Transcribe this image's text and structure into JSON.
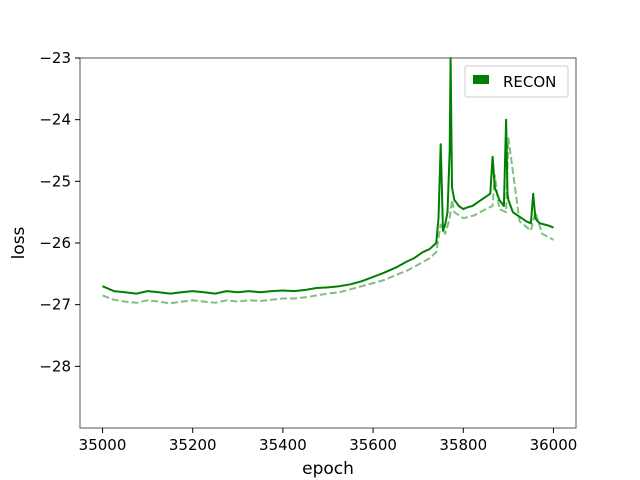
{
  "chart_data": {
    "type": "line",
    "title": "",
    "xlabel": "epoch",
    "ylabel": "loss",
    "xlim": [
      34950,
      36050
    ],
    "ylim": [
      -29,
      -23
    ],
    "xticks": [
      35000,
      35200,
      35400,
      35600,
      35800,
      36000
    ],
    "yticks": [
      -28,
      -27,
      -26,
      -25,
      -24,
      -23
    ],
    "xtick_labels": [
      "35000",
      "35200",
      "35400",
      "35600",
      "35800",
      "36000"
    ],
    "ytick_labels": [
      "−28",
      "−27",
      "−26",
      "−25",
      "−24",
      "−23"
    ],
    "grid": false,
    "legend": {
      "position": "top-right",
      "entries": [
        "RECON"
      ]
    },
    "colors": {
      "main": "#008000",
      "secondary": "#7fbf7f"
    },
    "series": [
      {
        "name": "RECON",
        "style": "solid",
        "x": [
          35000,
          35025,
          35050,
          35075,
          35100,
          35125,
          35150,
          35175,
          35200,
          35225,
          35250,
          35275,
          35300,
          35325,
          35350,
          35375,
          35400,
          35425,
          35450,
          35475,
          35500,
          35525,
          35550,
          35575,
          35600,
          35625,
          35650,
          35675,
          35690,
          35700,
          35710,
          35725,
          35740,
          35745,
          35750,
          35755,
          35760,
          35765,
          35770,
          35772,
          35775,
          35780,
          35790,
          35800,
          35810,
          35820,
          35830,
          35840,
          35850,
          35860,
          35865,
          35870,
          35875,
          35880,
          35890,
          35895,
          35898,
          35900,
          35905,
          35910,
          35920,
          35930,
          35940,
          35950,
          35955,
          35960,
          35965,
          35970,
          35980,
          35990,
          36000
        ],
        "values": [
          -26.7,
          -26.78,
          -26.8,
          -26.82,
          -26.78,
          -26.8,
          -26.82,
          -26.8,
          -26.78,
          -26.8,
          -26.82,
          -26.78,
          -26.8,
          -26.78,
          -26.8,
          -26.78,
          -26.77,
          -26.78,
          -26.76,
          -26.73,
          -26.72,
          -26.7,
          -26.67,
          -26.62,
          -26.55,
          -26.48,
          -26.4,
          -26.3,
          -26.25,
          -26.2,
          -26.15,
          -26.1,
          -26.0,
          -25.6,
          -24.4,
          -25.8,
          -25.7,
          -25.5,
          -24.5,
          -23.0,
          -25.1,
          -25.3,
          -25.4,
          -25.45,
          -25.42,
          -25.4,
          -25.35,
          -25.3,
          -25.25,
          -25.2,
          -24.6,
          -25.1,
          -25.2,
          -25.3,
          -25.4,
          -24.0,
          -25.2,
          -25.3,
          -25.4,
          -25.5,
          -25.55,
          -25.6,
          -25.65,
          -25.68,
          -25.2,
          -25.6,
          -25.65,
          -25.68,
          -25.7,
          -25.72,
          -25.75
        ]
      },
      {
        "name": "",
        "style": "dashed",
        "x": [
          35000,
          35025,
          35050,
          35075,
          35100,
          35125,
          35150,
          35175,
          35200,
          35225,
          35250,
          35275,
          35300,
          35325,
          35350,
          35375,
          35400,
          35425,
          35450,
          35475,
          35500,
          35525,
          35550,
          35575,
          35600,
          35625,
          35650,
          35675,
          35700,
          35725,
          35740,
          35750,
          35760,
          35770,
          35775,
          35780,
          35800,
          35825,
          35850,
          35865,
          35870,
          35880,
          35895,
          35900,
          35925,
          35950,
          35960,
          35975,
          36000
        ],
        "values": [
          -26.85,
          -26.92,
          -26.95,
          -26.97,
          -26.93,
          -26.95,
          -26.98,
          -26.95,
          -26.93,
          -26.95,
          -26.97,
          -26.93,
          -26.95,
          -26.93,
          -26.94,
          -26.92,
          -26.9,
          -26.9,
          -26.88,
          -26.85,
          -26.82,
          -26.8,
          -26.75,
          -26.7,
          -26.65,
          -26.6,
          -26.52,
          -26.45,
          -26.35,
          -26.25,
          -26.15,
          -25.7,
          -25.85,
          -25.6,
          -25.3,
          -25.5,
          -25.6,
          -25.55,
          -25.45,
          -25.4,
          -24.9,
          -25.45,
          -25.5,
          -24.3,
          -25.65,
          -25.8,
          -25.5,
          -25.85,
          -25.95
        ]
      }
    ]
  }
}
